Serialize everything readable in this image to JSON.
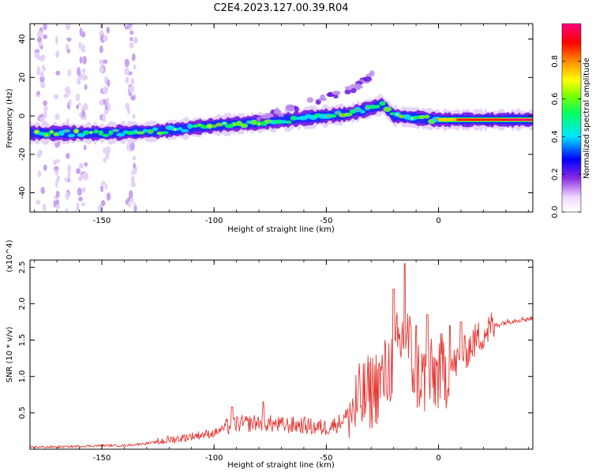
{
  "figure": {
    "title": "C2E4.2023.127.00.39.R04"
  },
  "colors": {
    "signal_line": "#e53935",
    "axis": "#000000",
    "background": "#ffffff"
  },
  "chart_data": [
    {
      "type": "heatmap",
      "title": "",
      "xlabel": "Height of straight line (km)",
      "ylabel": "Frequency (Hz)",
      "xlim": [
        -182,
        42
      ],
      "ylim": [
        -50,
        48
      ],
      "x_ticks": [
        -150,
        -100,
        -50,
        0
      ],
      "y_ticks": [
        -40,
        -20,
        0,
        20,
        40
      ],
      "colorbar": {
        "label": "Normalized spectral amplitude",
        "range": [
          0.0,
          1.0
        ],
        "ticks": [
          "0.0",
          "0.2",
          "0.4",
          "0.6",
          "0.8"
        ],
        "colormap": "rainbow (white → purple → blue → cyan → green → yellow → orange → red → magenta)"
      },
      "ridge": {
        "description": "main spectral ridge (frequency vs height)",
        "x": [
          -182,
          -150,
          -125,
          -100,
          -75,
          -50,
          -40,
          -30,
          -25,
          -20,
          -10,
          0,
          20,
          42
        ],
        "y": [
          -9,
          -9,
          -8,
          -5,
          -3,
          0,
          1,
          4,
          6,
          0,
          -1,
          -2,
          -2,
          -2
        ]
      },
      "secondary_branch": {
        "x": [
          -80,
          -60,
          -45,
          -35,
          -28
        ],
        "y": [
          -2,
          6,
          11,
          16,
          24
        ]
      }
    },
    {
      "type": "line",
      "title": "",
      "xlabel": "Height of straight line (km)",
      "ylabel": "SNR (10 * v/v)",
      "y_multiplier_label": "(x10^4)",
      "xlim": [
        -182,
        42
      ],
      "ylim": [
        0,
        2.6
      ],
      "x_ticks": [
        -150,
        -100,
        -50,
        0
      ],
      "y_ticks": [
        0.5,
        1.0,
        1.5,
        2.0,
        2.5
      ],
      "series": [
        {
          "x": [
            -182,
            -170,
            -160,
            -150,
            -140,
            -130,
            -125,
            -120,
            -115,
            -110,
            -100,
            -95,
            -90,
            -85,
            -80,
            -75,
            -70,
            -65,
            -60,
            -55,
            -50,
            -45,
            -40,
            -35,
            -30,
            -25,
            -22,
            -20,
            -18,
            -16,
            -14,
            -13,
            -12,
            -10,
            -8,
            -5,
            -2,
            0,
            5,
            10,
            15,
            20,
            25,
            30,
            35,
            42
          ],
          "y": [
            0.03,
            0.03,
            0.04,
            0.05,
            0.05,
            0.08,
            0.1,
            0.13,
            0.15,
            0.18,
            0.22,
            0.3,
            0.35,
            0.35,
            0.37,
            0.35,
            0.33,
            0.33,
            0.33,
            0.3,
            0.3,
            0.35,
            0.48,
            0.65,
            0.8,
            0.95,
            1.1,
            1.25,
            1.4,
            1.5,
            1.55,
            1.45,
            1.2,
            1.05,
            1.0,
            0.95,
            1.0,
            1.05,
            1.1,
            1.25,
            1.45,
            1.6,
            1.7,
            1.75,
            1.78,
            1.8
          ],
          "spikes": [
            {
              "x": -15,
              "y": 2.55
            },
            {
              "x": -20,
              "y": 2.2
            },
            {
              "x": -10,
              "y": 1.7
            },
            {
              "x": -5,
              "y": 1.85
            },
            {
              "x": 5,
              "y": 1.7
            },
            {
              "x": 10,
              "y": 1.75
            },
            {
              "x": -78,
              "y": 0.65
            },
            {
              "x": -92,
              "y": 0.58
            }
          ]
        }
      ]
    }
  ]
}
